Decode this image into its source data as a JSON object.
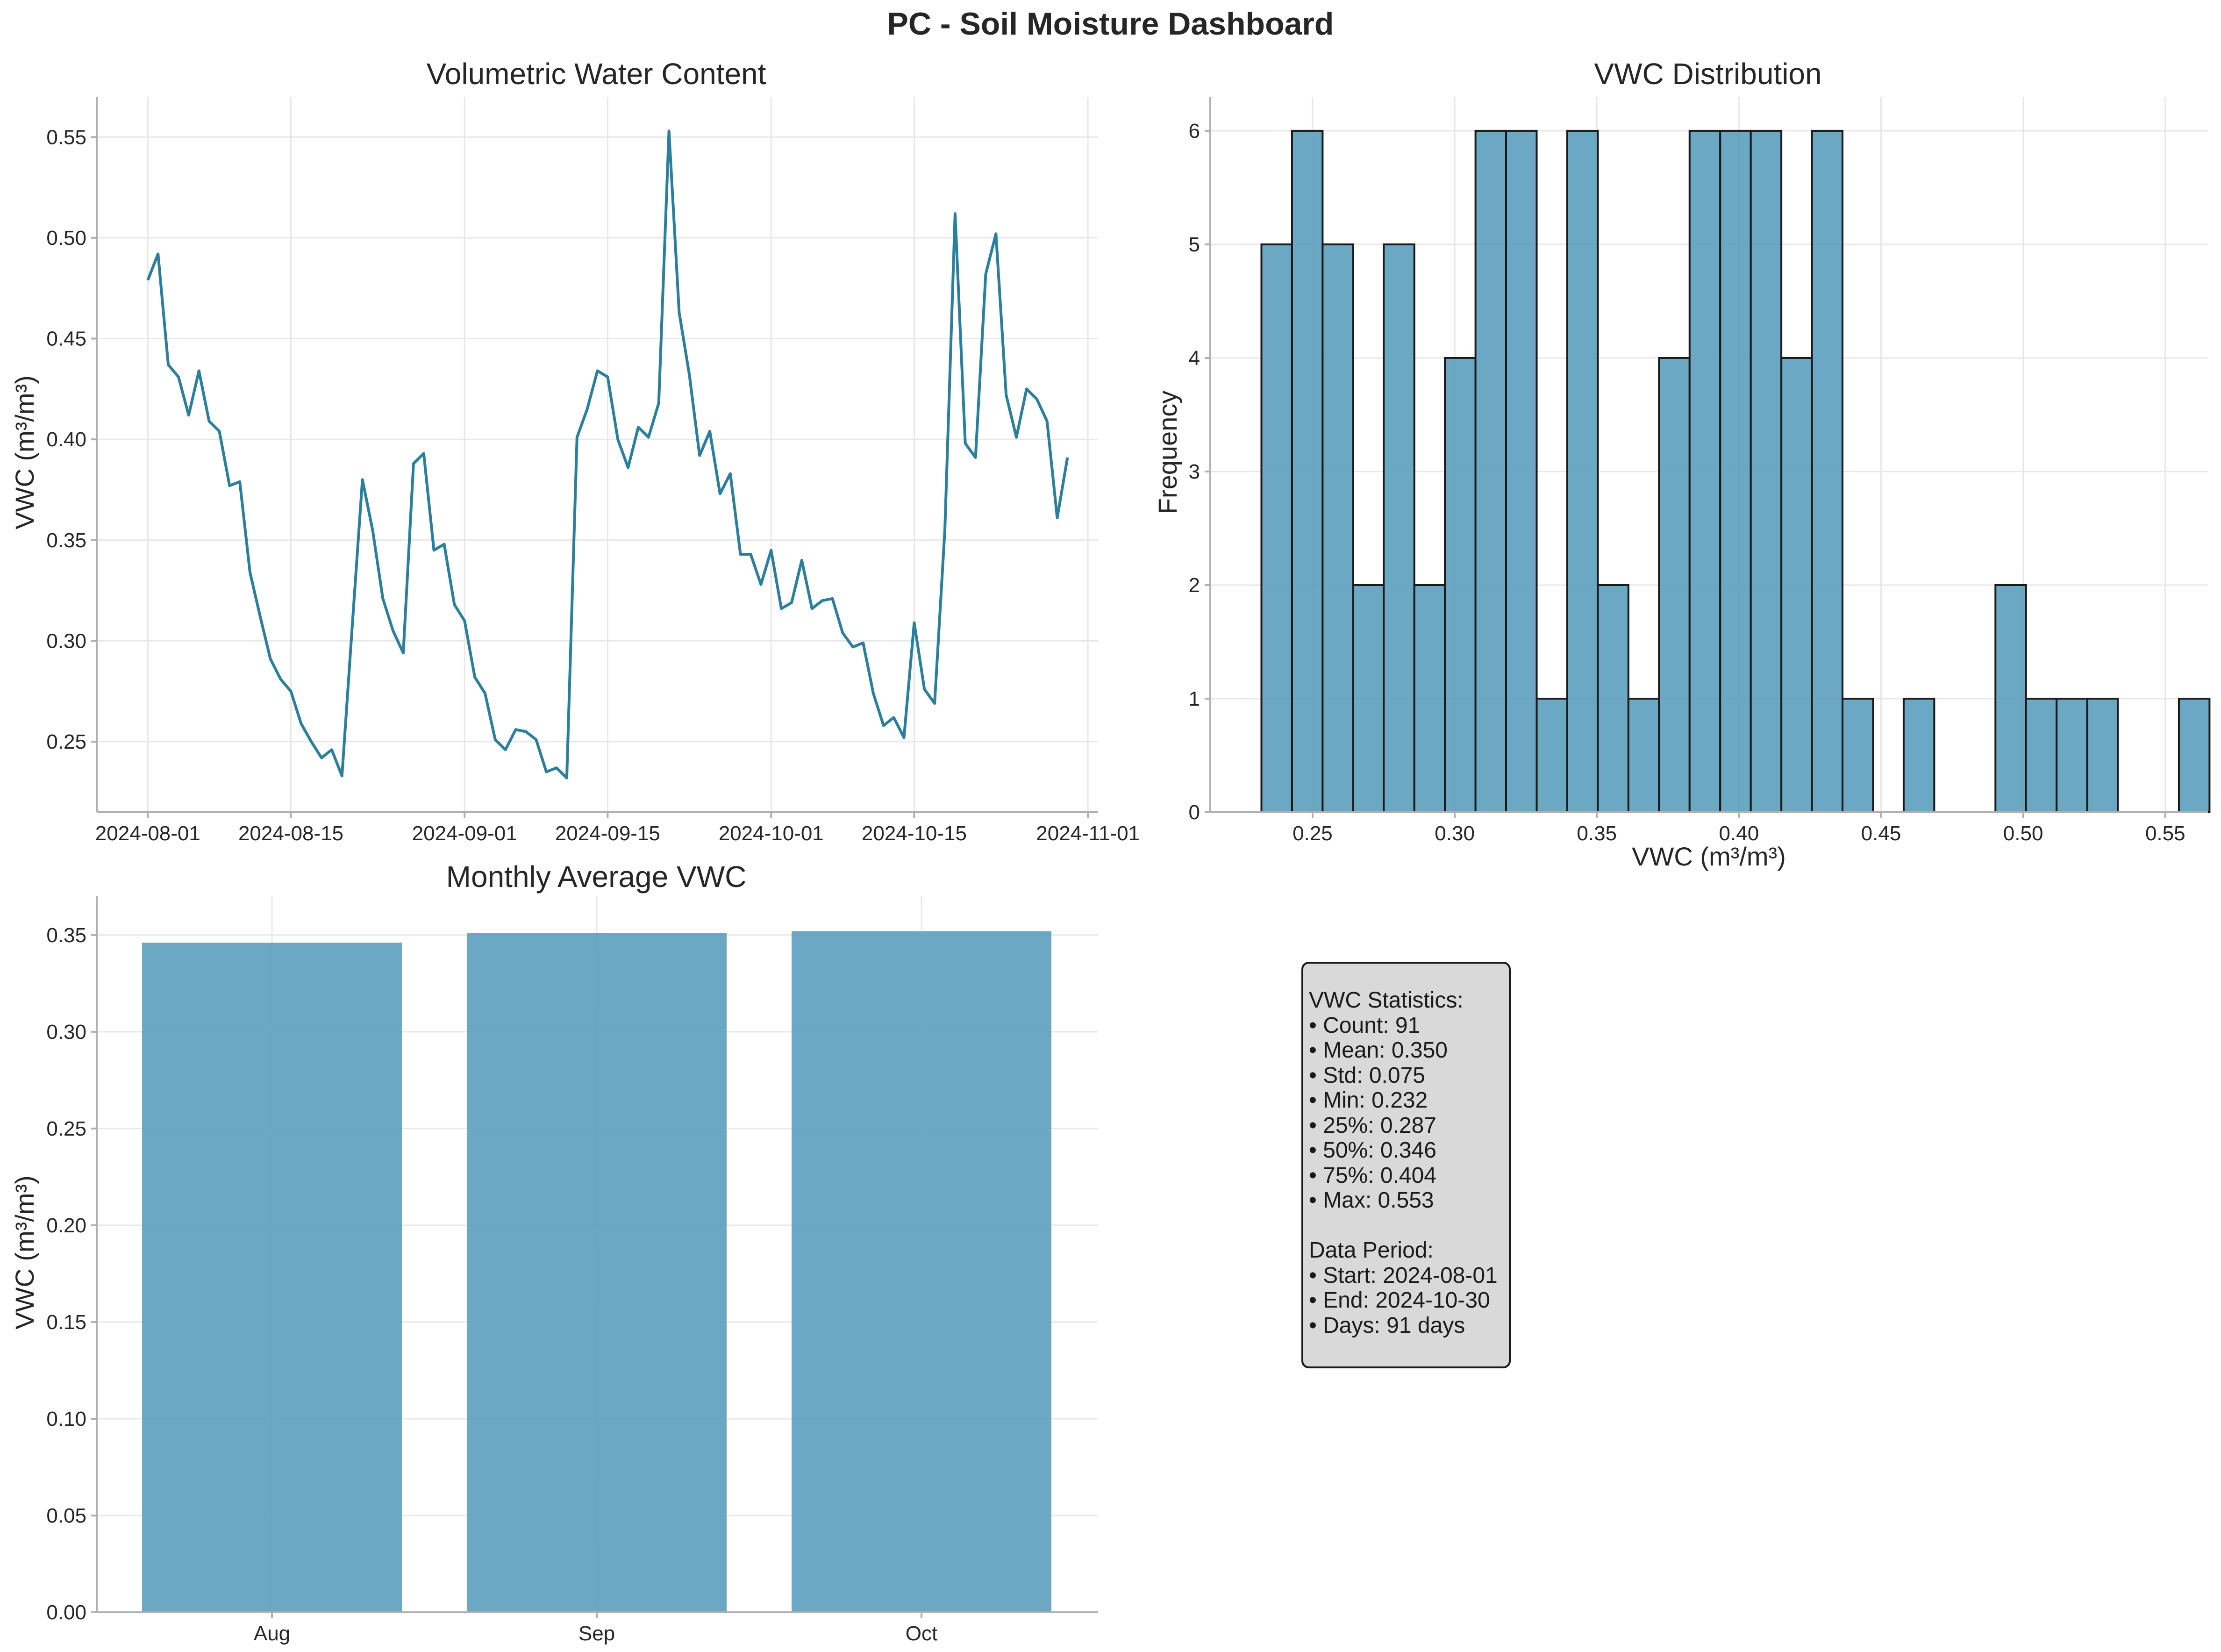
{
  "title": "PC - Soil Moisture Dashboard",
  "chart_data": [
    {
      "type": "line",
      "title": "Volumetric Water Content",
      "xlabel": "",
      "ylabel": "VWC (m³/m³)",
      "xlim": [
        "2024-07-27",
        "2024-11-02"
      ],
      "ylim": [
        0.215,
        0.57
      ],
      "grid": true,
      "color": "#2a7f9e",
      "xticks": [
        "2024-08-01",
        "2024-08-15",
        "2024-09-01",
        "2024-09-15",
        "2024-10-01",
        "2024-10-15",
        "2024-11-01"
      ],
      "yticks": [
        0.25,
        0.3,
        0.35,
        0.4,
        0.45,
        0.5,
        0.55
      ],
      "ytick_labels": [
        "0.25",
        "0.30",
        "0.35",
        "0.40",
        "0.45",
        "0.50",
        "0.55"
      ],
      "x": [
        "2024-08-01",
        "2024-08-02",
        "2024-08-03",
        "2024-08-04",
        "2024-08-05",
        "2024-08-06",
        "2024-08-07",
        "2024-08-08",
        "2024-08-09",
        "2024-08-10",
        "2024-08-11",
        "2024-08-12",
        "2024-08-13",
        "2024-08-14",
        "2024-08-15",
        "2024-08-16",
        "2024-08-17",
        "2024-08-18",
        "2024-08-19",
        "2024-08-20",
        "2024-08-21",
        "2024-08-22",
        "2024-08-23",
        "2024-08-24",
        "2024-08-25",
        "2024-08-26",
        "2024-08-27",
        "2024-08-28",
        "2024-08-29",
        "2024-08-30",
        "2024-08-31",
        "2024-09-01",
        "2024-09-02",
        "2024-09-03",
        "2024-09-04",
        "2024-09-05",
        "2024-09-06",
        "2024-09-07",
        "2024-09-08",
        "2024-09-09",
        "2024-09-10",
        "2024-09-11",
        "2024-09-12",
        "2024-09-13",
        "2024-09-14",
        "2024-09-15",
        "2024-09-16",
        "2024-09-17",
        "2024-09-18",
        "2024-09-19",
        "2024-09-20",
        "2024-09-21",
        "2024-09-22",
        "2024-09-23",
        "2024-09-24",
        "2024-09-25",
        "2024-09-26",
        "2024-09-27",
        "2024-09-28",
        "2024-09-29",
        "2024-09-30",
        "2024-10-01",
        "2024-10-02",
        "2024-10-03",
        "2024-10-04",
        "2024-10-05",
        "2024-10-06",
        "2024-10-07",
        "2024-10-08",
        "2024-10-09",
        "2024-10-10",
        "2024-10-11",
        "2024-10-12",
        "2024-10-13",
        "2024-10-14",
        "2024-10-15",
        "2024-10-16",
        "2024-10-17",
        "2024-10-18",
        "2024-10-19",
        "2024-10-20",
        "2024-10-21",
        "2024-10-22",
        "2024-10-23",
        "2024-10-24",
        "2024-10-25",
        "2024-10-26",
        "2024-10-27",
        "2024-10-28",
        "2024-10-29",
        "2024-10-30"
      ],
      "y": [
        0.479,
        0.492,
        0.437,
        0.431,
        0.412,
        0.434,
        0.409,
        0.404,
        0.377,
        0.379,
        0.334,
        0.312,
        0.291,
        0.281,
        0.275,
        0.259,
        0.25,
        0.242,
        0.246,
        0.233,
        0.307,
        0.38,
        0.355,
        0.321,
        0.305,
        0.294,
        0.388,
        0.393,
        0.345,
        0.348,
        0.318,
        0.31,
        0.282,
        0.274,
        0.251,
        0.246,
        0.256,
        0.255,
        0.251,
        0.235,
        0.237,
        0.232,
        0.401,
        0.415,
        0.434,
        0.431,
        0.4,
        0.386,
        0.406,
        0.401,
        0.418,
        0.553,
        0.463,
        0.432,
        0.392,
        0.404,
        0.373,
        0.383,
        0.343,
        0.343,
        0.328,
        0.345,
        0.316,
        0.319,
        0.34,
        0.316,
        0.32,
        0.321,
        0.304,
        0.297,
        0.299,
        0.274,
        0.258,
        0.262,
        0.252,
        0.309,
        0.276,
        0.269,
        0.355,
        0.512,
        0.398,
        0.391,
        0.482,
        0.502,
        0.422,
        0.401,
        0.425,
        0.42,
        0.409,
        0.361,
        0.391
      ]
    },
    {
      "type": "bar",
      "title": "VWC Distribution",
      "xlabel": "VWC (m³/m³)",
      "ylabel": "Frequency",
      "xlim": [
        0.214,
        0.565
      ],
      "ylim": [
        0,
        6.3
      ],
      "grid": true,
      "color": "#5b9fbe",
      "edgecolor": "#1a1a1a",
      "xticks": [
        0.25,
        0.3,
        0.35,
        0.4,
        0.45,
        0.5,
        0.55
      ],
      "xtick_labels": [
        "0.25",
        "0.30",
        "0.35",
        "0.40",
        "0.45",
        "0.50",
        "0.55"
      ],
      "yticks": [
        0,
        1,
        2,
        3,
        4,
        5,
        6
      ],
      "ytick_labels": [
        "0",
        "1",
        "2",
        "3",
        "4",
        "5",
        "6"
      ],
      "bin_start": 0.232,
      "bin_width": 0.01076,
      "counts": [
        5,
        6,
        5,
        2,
        5,
        2,
        4,
        6,
        6,
        1,
        6,
        2,
        1,
        4,
        6,
        6,
        6,
        4,
        6,
        1,
        0,
        1,
        0,
        0,
        2,
        1,
        1,
        1,
        0,
        0,
        1
      ]
    },
    {
      "type": "bar",
      "title": "Monthly Average VWC",
      "xlabel": "",
      "ylabel": "VWC (m³/m³)",
      "ylim": [
        0,
        0.37
      ],
      "grid": true,
      "color": "#5b9fbe",
      "categories": [
        "Aug",
        "Sep",
        "Oct"
      ],
      "values": [
        0.346,
        0.351,
        0.352
      ],
      "yticks": [
        0,
        0.05,
        0.1,
        0.15,
        0.2,
        0.25,
        0.3,
        0.35
      ],
      "ytick_labels": [
        "0.00",
        "0.05",
        "0.10",
        "0.15",
        "0.20",
        "0.25",
        "0.30",
        "0.35"
      ]
    }
  ],
  "stats_box": {
    "heading": "VWC Statistics:",
    "stats": [
      "• Count: 91",
      "• Mean: 0.350",
      "• Std: 0.075",
      "• Min: 0.232",
      "• 25%: 0.287",
      "• 50%: 0.346",
      "• 75%: 0.404",
      "• Max: 0.553"
    ],
    "period_heading": "Data Period:",
    "period": [
      "• Start: 2024-08-01",
      "• End: 2024-10-30",
      "• Days: 91 days"
    ]
  }
}
